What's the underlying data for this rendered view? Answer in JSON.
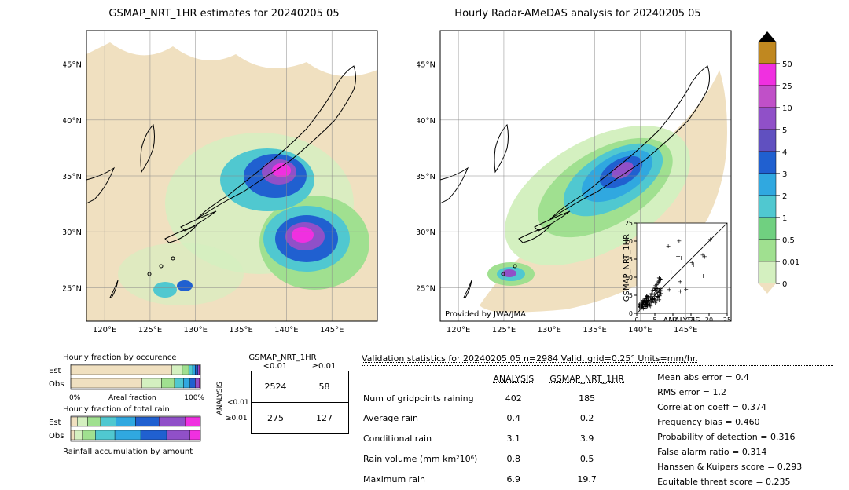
{
  "titles": {
    "left": "GSMAP_NRT_1HR estimates for 20240205 05",
    "right": "Hourly Radar-AMeDAS analysis for 20240205 05"
  },
  "map": {
    "xlim": [
      118,
      150
    ],
    "ylim": [
      22,
      48
    ],
    "xticks": [
      120,
      125,
      130,
      135,
      140,
      145
    ],
    "yticks": [
      25,
      30,
      35,
      40,
      45
    ],
    "xtick_labels": [
      "120°E",
      "125°E",
      "130°E",
      "135°E",
      "140°E",
      "145°E"
    ],
    "ytick_labels": [
      "25°N",
      "30°N",
      "35°N",
      "40°N",
      "45°N"
    ],
    "attribution": "Provided by JWA/JMA"
  },
  "colors": {
    "land_bg": "#f0e0c0",
    "ocean": "#ffffff",
    "coast": "#000000",
    "precip": [
      "#f0e0c0",
      "#d4f0c0",
      "#a0e090",
      "#70d080",
      "#50c8d0",
      "#30a8e0",
      "#2060d0",
      "#6050c0",
      "#9050c8",
      "#c050c8",
      "#f030e0",
      "#c08820",
      "#000000"
    ]
  },
  "colorbar": {
    "ticks": [
      "0",
      "0.01",
      "0.5",
      "1",
      "2",
      "3",
      "4",
      "5",
      "10",
      "25",
      "50"
    ],
    "heights": [
      30,
      30,
      30,
      30,
      30,
      30,
      30,
      30,
      30,
      30,
      30
    ]
  },
  "scatter_inset": {
    "xlabel": "ANALYSIS",
    "ylabel": "GSMAP_NRT_1HR",
    "lim": [
      0,
      25
    ],
    "ticks": [
      0,
      5,
      10,
      15,
      20,
      25
    ]
  },
  "contingency": {
    "title": "GSMAP_NRT_1HR",
    "col_headers": [
      "<0.01",
      "≥0.01"
    ],
    "row_header_vert": "ANALYSIS",
    "row_headers": [
      "<0.01",
      "≥0.01"
    ],
    "cells": [
      [
        "2524",
        "58"
      ],
      [
        "275",
        "127"
      ]
    ]
  },
  "bars": {
    "occ_title": "Hourly fraction by occurence",
    "rain_title": "Hourly fraction of total rain",
    "accum_title": "Rainfall accumulation by amount",
    "row_labels": [
      "Est",
      "Obs"
    ],
    "x_axis": [
      "0%",
      "Areal fraction",
      "100%"
    ],
    "occ_est": [
      0.78,
      0.08,
      0.05,
      0.03,
      0.02,
      0.02,
      0.01,
      0.01
    ],
    "occ_obs": [
      0.55,
      0.15,
      0.1,
      0.07,
      0.05,
      0.04,
      0.03,
      0.01
    ],
    "rain_est": [
      0.05,
      0.08,
      0.1,
      0.12,
      0.15,
      0.18,
      0.2,
      0.12
    ],
    "rain_obs": [
      0.03,
      0.06,
      0.1,
      0.15,
      0.2,
      0.2,
      0.18,
      0.08
    ],
    "bar_colors": [
      "#f0e0c0",
      "#d4f0c0",
      "#a0e090",
      "#50c8d0",
      "#30a8e0",
      "#2060d0",
      "#9050c8",
      "#f030e0"
    ]
  },
  "validation": {
    "header": "Validation statistics for 20240205 05  n=2984 Valid. grid=0.25° Units=mm/hr.",
    "col1": "ANALYSIS",
    "col2": "GSMAP_NRT_1HR",
    "rows": [
      {
        "label": "Num of gridpoints raining",
        "a": "402",
        "b": "185"
      },
      {
        "label": "Average rain",
        "a": "0.4",
        "b": "0.2"
      },
      {
        "label": "Conditional rain",
        "a": "3.1",
        "b": "3.9"
      },
      {
        "label": "Rain volume (mm km²10⁶)",
        "a": "0.8",
        "b": "0.5"
      },
      {
        "label": "Maximum rain",
        "a": "6.9",
        "b": "19.7"
      }
    ],
    "metrics": [
      {
        "label": "Mean abs error",
        "v": "0.4"
      },
      {
        "label": "RMS error",
        "v": "1.2"
      },
      {
        "label": "Correlation coeff",
        "v": "0.374"
      },
      {
        "label": "Frequency bias",
        "v": "0.460"
      },
      {
        "label": "Probability of detection",
        "v": "0.316"
      },
      {
        "label": "False alarm ratio",
        "v": "0.314"
      },
      {
        "label": "Hanssen & Kuipers score",
        "v": "0.293"
      },
      {
        "label": "Equitable threat score",
        "v": "0.235"
      }
    ]
  }
}
